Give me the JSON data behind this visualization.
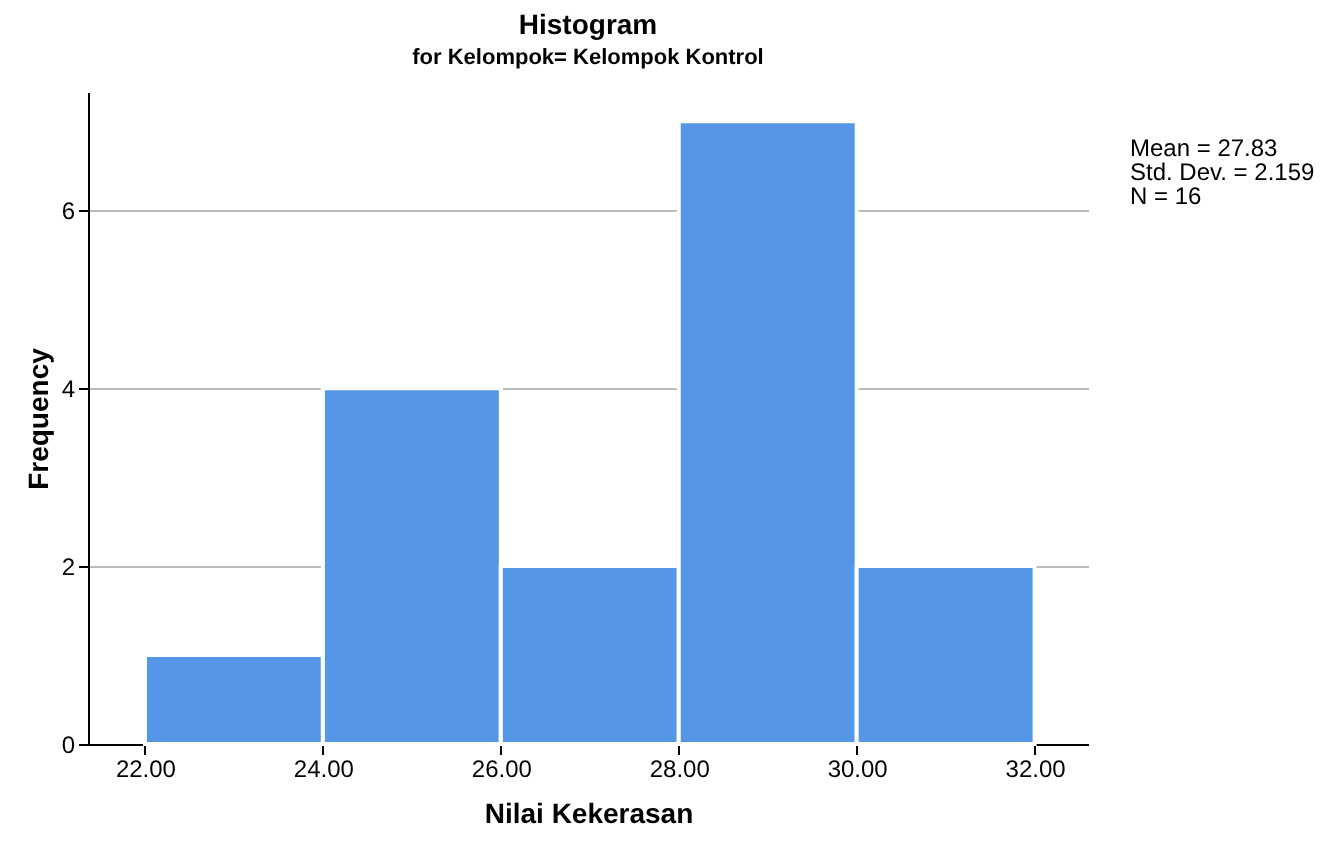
{
  "chart_data": {
    "type": "histogram",
    "title": "Histogram",
    "subtitle": "for Kelompok= Kelompok Kontrol",
    "xlabel": "Nilai Kekerasan",
    "ylabel": "Frequency",
    "bins": [
      22,
      24,
      26,
      28,
      30,
      32
    ],
    "values": [
      1,
      4,
      2,
      7,
      2
    ],
    "color": "#5596e6",
    "xlim": [
      21.36,
      32.6
    ],
    "ylim": [
      0,
      7.33
    ],
    "xticks": [
      {
        "value": 22,
        "label": "22.00"
      },
      {
        "value": 24,
        "label": "24.00"
      },
      {
        "value": 26,
        "label": "26.00"
      },
      {
        "value": 28,
        "label": "28.00"
      },
      {
        "value": 30,
        "label": "30.00"
      },
      {
        "value": 32,
        "label": "32.00"
      }
    ],
    "yticks": [
      0,
      2,
      4,
      6
    ],
    "grid": "y",
    "annotations": [
      "Mean = 27.83",
      "Std. Dev. = 2.159",
      "N = 16"
    ]
  }
}
